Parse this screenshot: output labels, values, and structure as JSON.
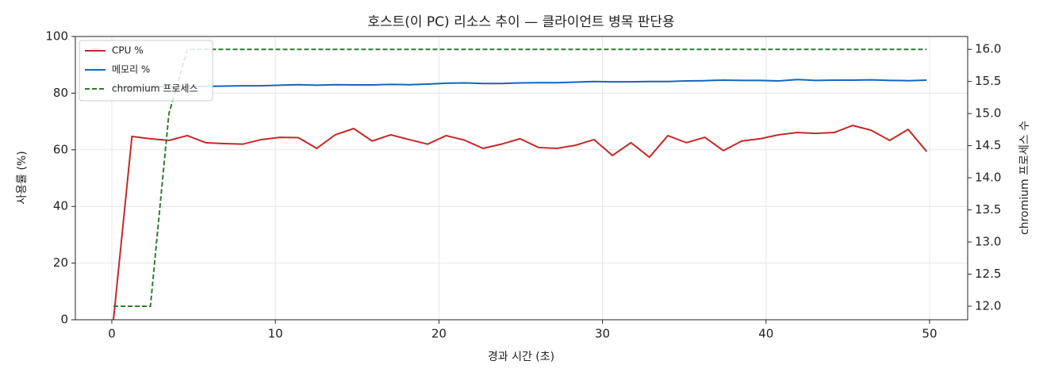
{
  "chart_data": {
    "type": "line",
    "title": "호스트(이 PC) 리소스 추이 — 클라이언트 병목 판단용",
    "x_label": "경과 시간 (초)",
    "y_label": "사용률 (%)",
    "y2_label": "chromium 프로세스 수",
    "x": [
      0.1,
      1.23,
      2.36,
      3.49,
      4.62,
      5.75,
      6.88,
      8.01,
      9.14,
      10.27,
      11.4,
      12.53,
      13.66,
      14.79,
      15.92,
      17.05,
      18.18,
      19.31,
      20.44,
      21.57,
      22.7,
      23.83,
      24.96,
      26.09,
      27.22,
      28.35,
      29.48,
      30.61,
      31.74,
      32.87,
      34.0,
      35.13,
      36.26,
      37.39,
      38.52,
      39.65,
      40.78,
      41.91,
      43.04,
      44.17,
      45.3,
      46.43,
      47.56,
      48.69,
      49.82
    ],
    "series": [
      {
        "name": "CPU %",
        "color": "#c62828",
        "values": [
          0,
          64.7,
          63.9,
          63.3,
          65,
          62.5,
          62.2,
          62,
          63.6,
          64.4,
          64.3,
          60.5,
          65.3,
          67.5,
          63.1,
          65.3,
          63.6,
          62,
          65,
          63.4,
          60.5,
          62,
          63.9,
          60.8,
          60.5,
          61.6,
          63.6,
          58,
          62.5,
          57.4,
          65,
          62.5,
          64.4,
          59.7,
          63.1,
          63.9,
          65.3,
          66.1,
          65.8,
          66.1,
          68.6,
          66.9,
          63.3,
          67.2,
          59.4
        ]
      },
      {
        "name": "메모리 %",
        "color": "#1565c0",
        "values": [
          82.0,
          82.1,
          82.2,
          82.2,
          82.3,
          82.4,
          82.5,
          82.6,
          82.6,
          82.8,
          83.0,
          82.8,
          83.0,
          82.9,
          82.9,
          83.1,
          83.0,
          83.2,
          83.5,
          83.6,
          83.4,
          83.4,
          83.6,
          83.7,
          83.7,
          83.9,
          84.1,
          84.0,
          84.0,
          84.1,
          84.1,
          84.3,
          84.4,
          84.6,
          84.5,
          84.5,
          84.3,
          84.8,
          84.5,
          84.6,
          84.6,
          84.7,
          84.5,
          84.4,
          84.6
        ]
      },
      {
        "name": "chromium 프로세스",
        "color": "#2e7d32",
        "dashed": true,
        "axis": "y2",
        "values": [
          12,
          12,
          12,
          15,
          16,
          16,
          16,
          16,
          16,
          16,
          16,
          16,
          16,
          16,
          16,
          16,
          16,
          16,
          16,
          16,
          16,
          16,
          16,
          16,
          16,
          16,
          16,
          16,
          16,
          16,
          16,
          16,
          16,
          16,
          16,
          16,
          16,
          16,
          16,
          16,
          16,
          16,
          16,
          16,
          16
        ]
      }
    ],
    "xlim": [
      -2.23,
      52.33
    ],
    "xticks": [
      0,
      10,
      20,
      30,
      40,
      50
    ],
    "ylim": [
      0,
      100
    ],
    "yticks": [
      0,
      20,
      40,
      60,
      80,
      100
    ],
    "y2lim": [
      11.79,
      16.2
    ],
    "y2ticks": [
      {
        "value": 12,
        "label": "12.0"
      },
      {
        "value": 12.5,
        "label": "12.5"
      },
      {
        "value": 13,
        "label": "13.0"
      },
      {
        "value": 13.5,
        "label": "13.5"
      },
      {
        "value": 14,
        "label": "14.0"
      },
      {
        "value": 14.5,
        "label": "14.5"
      },
      {
        "value": 15,
        "label": "15.0"
      },
      {
        "value": 15.5,
        "label": "15.5"
      },
      {
        "value": 16,
        "label": "16.0"
      }
    ],
    "grid": true,
    "legend": "upper-left"
  }
}
